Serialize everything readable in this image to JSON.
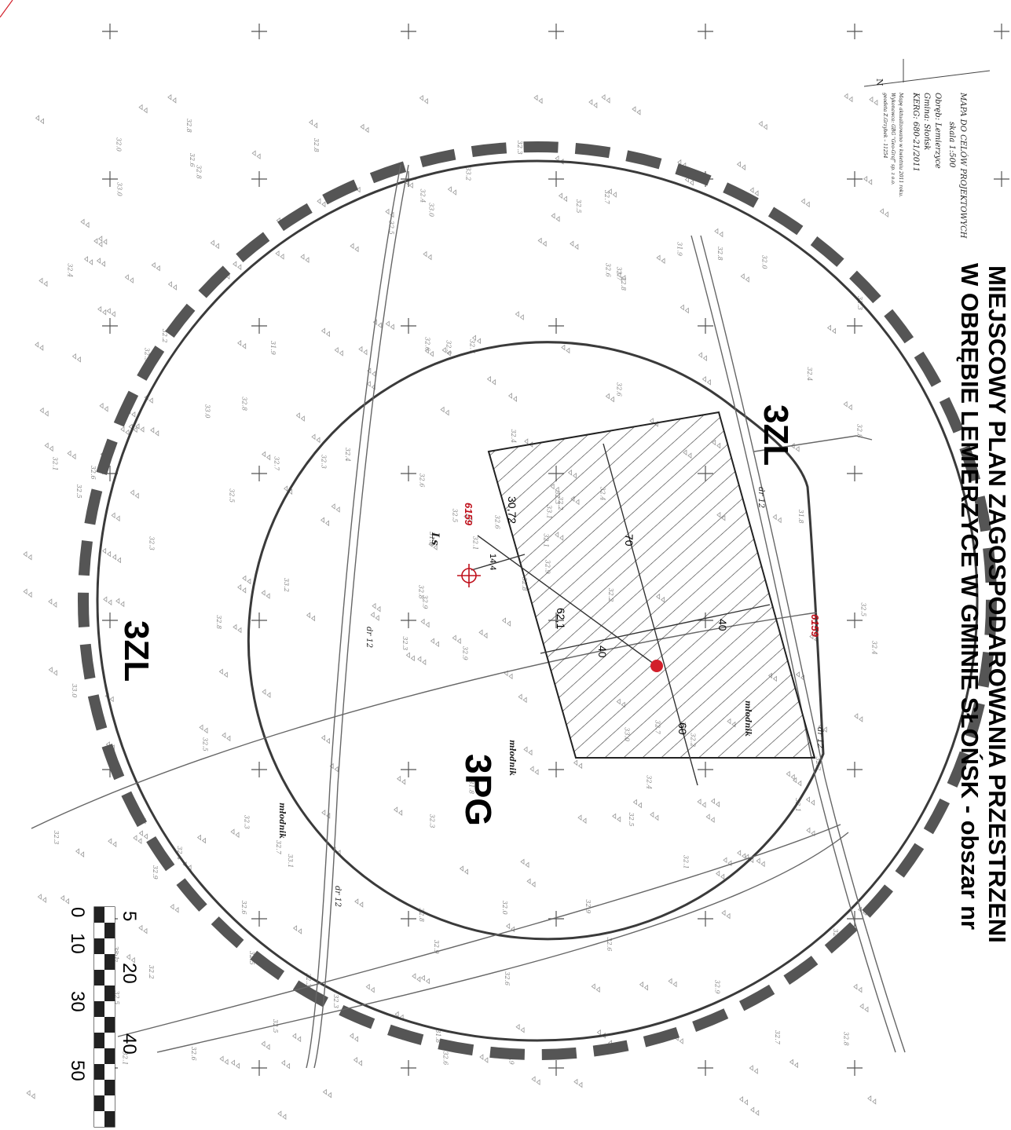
{
  "title": {
    "line1": "MIEJSCOWY PLAN ZAGOSPODAROWANIA PRZESTRZENI",
    "line2": "W OBRĘBIE LEMIERZYCE W GMINIE   SŁOŃSK - obszar nr"
  },
  "info_block": {
    "line1": "MAPA DO CELÓW PROJEKTOWYCH",
    "line2": "skala 1:500",
    "line3": "Obręb: Lemierzyce",
    "line4": "Gmina: Słońsk",
    "line5": "KERG: 680-21/2011",
    "line6": "Mapę aktualizowano w kwietniu 2011 roku.",
    "line7": "Wykonawca: GBG \"Geo-Graf\" sp. z o.o.",
    "line8": "geodeta Z.Grzybek – 11254",
    "north_label": "N"
  },
  "zones": {
    "zone_3zl_top": "3ZL",
    "zone_3zl_left": "3ZL",
    "zone_3pg": "3PG"
  },
  "parcels": {
    "parcel_a": "6159",
    "parcel_b": "6159"
  },
  "land_use": {
    "ls": "Ls",
    "mlodnik_1": "młodnik",
    "mlodnik_2": "młodnik",
    "mlodnik_3": "młodnik"
  },
  "roads": {
    "dr_top": "dr 12",
    "dr_mid": "dr 12",
    "dr_right": "dr 12",
    "dr_bottom": "dr 12"
  },
  "dimensions": {
    "d70": "70",
    "d60": "60",
    "d40a": "40",
    "d40b": "40",
    "d30_72": "30,72",
    "d14_4": "14,4",
    "d62_1": "62,1"
  },
  "scale_bar": {
    "upper_labels": [
      "5",
      "20",
      "40"
    ],
    "lower_labels": [
      "0",
      "10",
      "30",
      "50"
    ]
  },
  "elevations": [
    "32.9",
    "33.1",
    "32.7",
    "32.8",
    "32.3",
    "32.6",
    "32.4",
    "32.5",
    "32.2",
    "33.0",
    "32.8",
    "31.9",
    "32.7",
    "32.3",
    "32.5",
    "32.1",
    "32.9",
    "32.4",
    "32.6",
    "32.0",
    "33.2",
    "32.8",
    "32.5",
    "32.3",
    "32.7",
    "33.0",
    "32.6",
    "32.2",
    "31.8",
    "32.9",
    "32.4",
    "32.1",
    "32.6",
    "32.8",
    "32.5",
    "32.3"
  ],
  "colors": {
    "ink": "#3a3a3a",
    "dash_circle": "#555555",
    "marker": "#d21f2a",
    "parcel_red": "#c0111c"
  }
}
